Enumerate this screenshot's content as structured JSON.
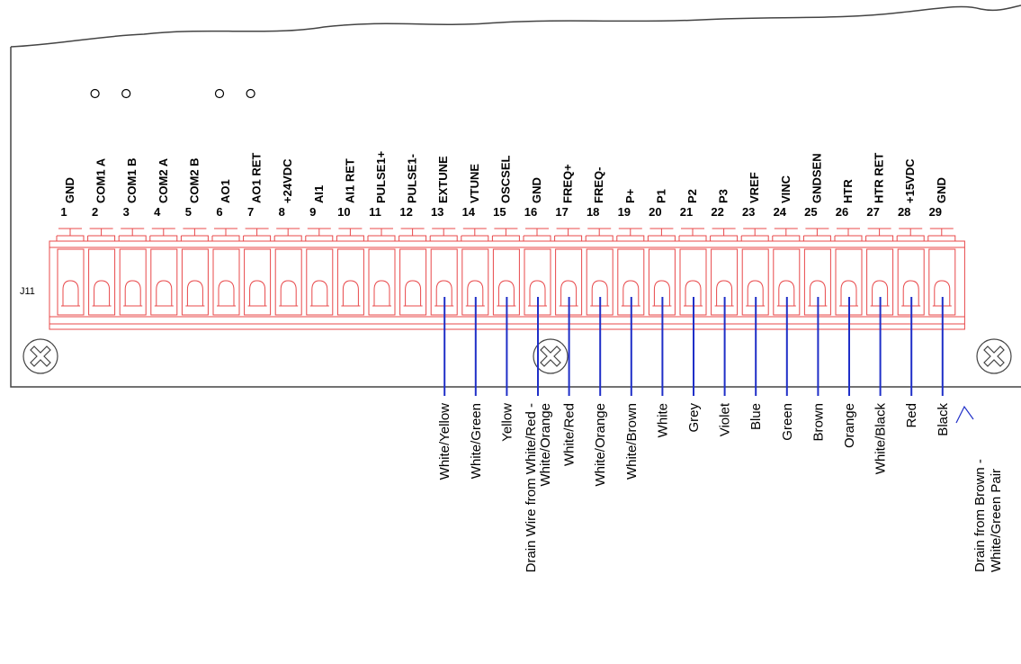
{
  "board_label": "J11",
  "colors": {
    "terminal": "#e8484a",
    "wire": "#1f2fc8",
    "outline": "#444444"
  },
  "pins": [
    {
      "num": "1",
      "label": "GND",
      "marker": false
    },
    {
      "num": "2",
      "label": "COM1 A",
      "marker": true
    },
    {
      "num": "3",
      "label": "COM1 B",
      "marker": true
    },
    {
      "num": "4",
      "label": "COM2 A",
      "marker": false
    },
    {
      "num": "5",
      "label": "COM2 B",
      "marker": false
    },
    {
      "num": "6",
      "label": "AO1",
      "marker": true
    },
    {
      "num": "7",
      "label": "AO1 RET",
      "marker": true
    },
    {
      "num": "8",
      "label": "+24VDC",
      "marker": false
    },
    {
      "num": "9",
      "label": "AI1",
      "marker": false
    },
    {
      "num": "10",
      "label": "AI1 RET",
      "marker": false
    },
    {
      "num": "11",
      "label": "PULSE1+",
      "marker": false
    },
    {
      "num": "12",
      "label": "PULSE1-",
      "marker": false
    },
    {
      "num": "13",
      "label": "EXTUNE",
      "marker": false
    },
    {
      "num": "14",
      "label": "VTUNE",
      "marker": false
    },
    {
      "num": "15",
      "label": "OSCSEL",
      "marker": false
    },
    {
      "num": "16",
      "label": "GND",
      "marker": false
    },
    {
      "num": "17",
      "label": "FREQ+",
      "marker": false
    },
    {
      "num": "18",
      "label": "FREQ-",
      "marker": false
    },
    {
      "num": "19",
      "label": "P+",
      "marker": false
    },
    {
      "num": "20",
      "label": "P1",
      "marker": false
    },
    {
      "num": "21",
      "label": "P2",
      "marker": false
    },
    {
      "num": "22",
      "label": "P3",
      "marker": false
    },
    {
      "num": "23",
      "label": "VREF",
      "marker": false
    },
    {
      "num": "24",
      "label": "VINC",
      "marker": false
    },
    {
      "num": "25",
      "label": "GNDSEN",
      "marker": false
    },
    {
      "num": "26",
      "label": "HTR",
      "marker": false
    },
    {
      "num": "27",
      "label": "HTR RET",
      "marker": false
    },
    {
      "num": "28",
      "label": "+15VDC",
      "marker": false
    },
    {
      "num": "29",
      "label": "GND",
      "marker": false
    }
  ],
  "wires": [
    {
      "pin": "13",
      "lines": [
        "White/Yellow"
      ]
    },
    {
      "pin": "14",
      "lines": [
        "White/Green"
      ]
    },
    {
      "pin": "15",
      "lines": [
        "Yellow"
      ]
    },
    {
      "pin": "16",
      "lines": [
        "Drain Wire from White/Red -",
        "White/Orange"
      ]
    },
    {
      "pin": "17",
      "lines": [
        "White/Red"
      ]
    },
    {
      "pin": "18",
      "lines": [
        "White/Orange"
      ]
    },
    {
      "pin": "19",
      "lines": [
        "White/Brown"
      ]
    },
    {
      "pin": "20",
      "lines": [
        "White"
      ]
    },
    {
      "pin": "21",
      "lines": [
        "Grey"
      ]
    },
    {
      "pin": "22",
      "lines": [
        "Violet"
      ]
    },
    {
      "pin": "23",
      "lines": [
        "Blue"
      ]
    },
    {
      "pin": "24",
      "lines": [
        "Green"
      ]
    },
    {
      "pin": "25",
      "lines": [
        "Brown"
      ]
    },
    {
      "pin": "26",
      "lines": [
        "Orange"
      ]
    },
    {
      "pin": "27",
      "lines": [
        "White/Black"
      ]
    },
    {
      "pin": "28",
      "lines": [
        "Red"
      ]
    },
    {
      "pin": "29",
      "lines": [
        "Black"
      ]
    }
  ],
  "drain_note": [
    "Drain from Brown -",
    "White/Green Pair"
  ]
}
